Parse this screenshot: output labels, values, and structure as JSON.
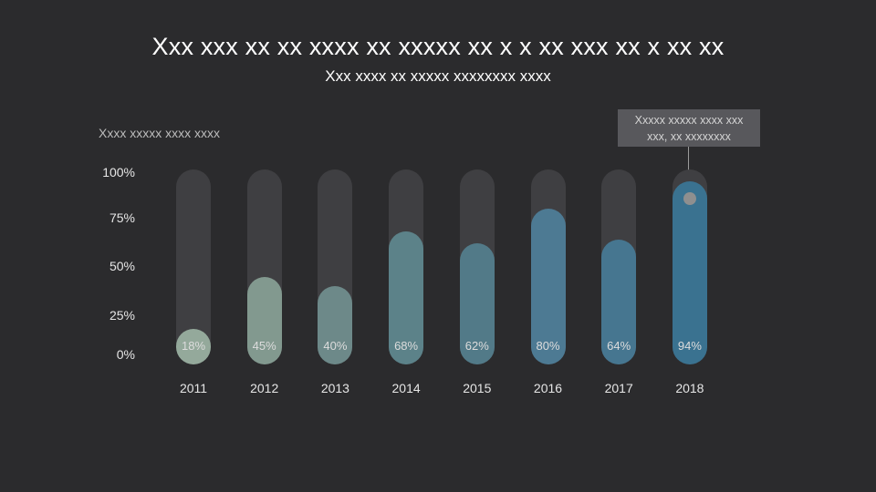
{
  "chart_data": {
    "type": "bar",
    "title": "Xxx xxx xx xx xxxx xx xxxxx xx x x xx xxx xx x xx xx",
    "subtitle": "Xxx xxxx xx xxxxx xxxxxxxx xxxx",
    "ylabel": "Xxxx xxxxx xxxx xxxx",
    "ylim": [
      0,
      100
    ],
    "yticks": [
      "0%",
      "25%",
      "50%",
      "75%",
      "100%"
    ],
    "grid": false,
    "categories": [
      "2011",
      "2012",
      "2013",
      "2014",
      "2015",
      "2016",
      "2017",
      "2018"
    ],
    "values": [
      18,
      45,
      40,
      68,
      62,
      80,
      64,
      94
    ],
    "value_labels": [
      "18%",
      "45%",
      "40%",
      "68%",
      "62%",
      "80%",
      "64%",
      "94%"
    ],
    "colors": [
      "#94a99b",
      "#82998f",
      "#6d8989",
      "#5c8289",
      "#527a88",
      "#4d7a93",
      "#467690",
      "#3a7290"
    ],
    "track_color": "#3f3f42",
    "annotation": {
      "text_line1": "Xxxxx xxxxx xxxx xxx",
      "text_line2": "xxx, xx xxxxxxxx",
      "target_category": "2018"
    }
  }
}
